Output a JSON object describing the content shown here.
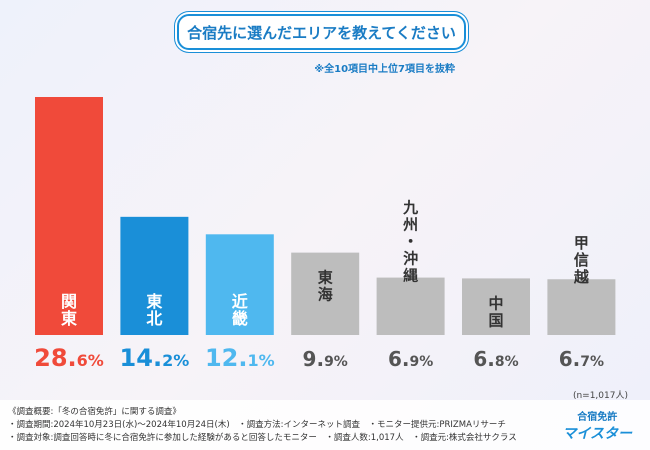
{
  "title": "合宿先に選んだエリアを教えてください",
  "note": "※全10項目中上位7項目を抜粋",
  "sample": "(n=1,017人)",
  "chart_data": {
    "type": "bar",
    "categories": [
      "関東",
      "東北",
      "近畿",
      "東海",
      "九州・沖縄",
      "中国",
      "甲信越"
    ],
    "values": [
      28.6,
      14.2,
      12.1,
      9.9,
      6.9,
      6.8,
      6.7
    ],
    "unit": "%",
    "ylim": [
      0,
      30
    ],
    "grid": false,
    "colors": [
      "#f04a3a",
      "#1a8fd8",
      "#4fb8ef",
      "#bdbdbd",
      "#bdbdbd",
      "#bdbdbd",
      "#bdbdbd"
    ],
    "label_colors": [
      "#f04a3a",
      "#1a8fd8",
      "#4fb8ef",
      "#555555",
      "#555555",
      "#555555",
      "#555555"
    ]
  },
  "footer": [
    "《調査概要:「冬の合宿免許」に関する調査》",
    "・調査期間:2024年10月23日(水)〜2024年10月24日(木)　・調査方法:インターネット調査　・モニター提供元:PRIZMAリサーチ",
    "・調査対象:調査回答時に冬に合宿免許に参加した経験があると回答したモニター　・調査人数:1,017人　・調査元:株式会社サクラス"
  ],
  "logo": {
    "top": "合宿免許",
    "bottom": "マイスター"
  }
}
